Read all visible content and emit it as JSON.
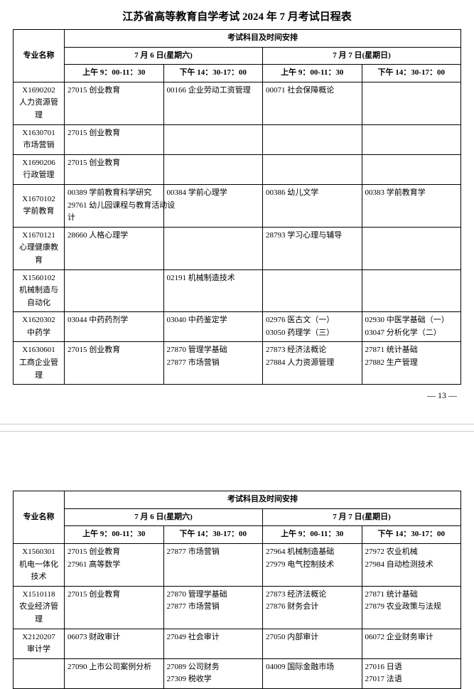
{
  "title": "江苏省高等教育自学考试 2024 年 7 月考试日程表",
  "header": {
    "major": "专业名称",
    "arrange": "考试科目及时间安排",
    "day1": "7 月 6 日(星期六)",
    "day2": "7 月 7 日(星期日)",
    "am": "上午 9：00-11：30",
    "pm": "下午 14：30-17：00"
  },
  "pagenum": "— 13 —",
  "tables": [
    {
      "rows": [
        {
          "major": [
            "X1690202",
            "人力资源管理"
          ],
          "c": [
            [
              "27015 创业教育"
            ],
            [
              "00166 企业劳动工资管理"
            ],
            [
              "00071 社会保障概论"
            ],
            []
          ]
        },
        {
          "major": [
            "X1630701",
            "市场营销"
          ],
          "c": [
            [
              "27015 创业教育"
            ],
            [],
            [],
            []
          ]
        },
        {
          "major": [
            "X1690206",
            "行政管理"
          ],
          "c": [
            [
              "27015 创业教育"
            ],
            [],
            [],
            []
          ]
        },
        {
          "major": [
            "X1670102",
            "学前教育"
          ],
          "c": [
            [
              "00389 学前教育科学研究",
              "29761 幼儿园课程与教育活动设",
              "计"
            ],
            [
              "00384 学前心理学"
            ],
            [
              "00386 幼儿文学"
            ],
            [
              "00383 学前教育学"
            ]
          ]
        },
        {
          "major": [
            "X1670121",
            "心理健康教育"
          ],
          "c": [
            [
              "28660 人格心理学"
            ],
            [],
            [
              "28793 学习心理与辅导"
            ],
            []
          ]
        },
        {
          "major": [
            "X1560102",
            "机械制造与自动化"
          ],
          "c": [
            [],
            [
              "02191 机械制造技术"
            ],
            [],
            []
          ]
        },
        {
          "major": [
            "X1620302",
            "中药学"
          ],
          "c": [
            [
              "03044 中药药剂学"
            ],
            [
              "03040 中药鉴定学"
            ],
            [
              "02976 医古文（一）",
              "03050 药理学（三）"
            ],
            [
              "02930 中医学基础（一）",
              "03047 分析化学（二）"
            ]
          ]
        },
        {
          "major": [
            "X1630601",
            "工商企业管理"
          ],
          "c": [
            [
              "27015 创业教育"
            ],
            [
              "27870 管理学基础",
              "27877 市场营销"
            ],
            [
              "27873 经济法概论",
              "27884 人力资源管理"
            ],
            [
              "27871 统计基础",
              "27882 生产管理"
            ]
          ]
        }
      ]
    },
    {
      "rows": [
        {
          "major": [
            "X1560301",
            "机电一体化技术"
          ],
          "c": [
            [
              "27015 创业教育",
              "27961 高等数学"
            ],
            [
              "27877 市场营销"
            ],
            [
              "27964 机械制造基础",
              "27979 电气控制技术"
            ],
            [
              "27972 农业机械",
              "27984 自动检测技术"
            ]
          ]
        },
        {
          "major": [
            "X1510118",
            "农业经济管理"
          ],
          "c": [
            [
              "27015 创业教育"
            ],
            [
              "27870 管理学基础",
              "27877 市场营销"
            ],
            [
              "27873 经济法概论",
              "27876 财务会计"
            ],
            [
              "27871 统计基础",
              "27879 农业政策与法规"
            ]
          ]
        },
        {
          "major": [
            "X2120207",
            "审计学"
          ],
          "c": [
            [
              "06073 财政审计"
            ],
            [
              "27049 社会审计"
            ],
            [
              "27050 内部审计"
            ],
            [
              "06072 企业财务审计"
            ]
          ]
        },
        {
          "major": [
            "",
            ""
          ],
          "c": [
            [
              "27090 上市公司案例分析"
            ],
            [
              "27089 公司财务",
              "27309 税收学"
            ],
            [
              "04009 国际金融市场"
            ],
            [
              "27016 日语",
              "27017 法语"
            ]
          ]
        }
      ]
    }
  ]
}
